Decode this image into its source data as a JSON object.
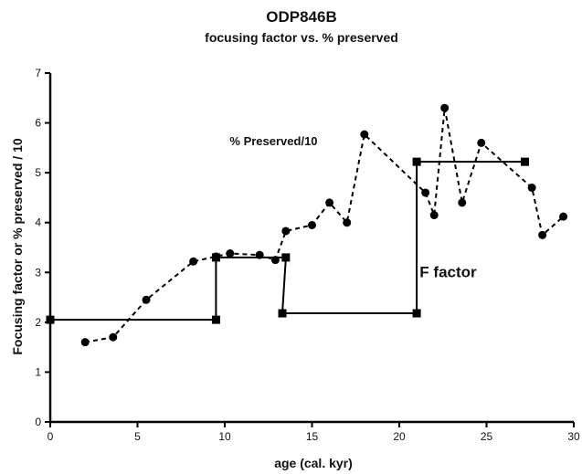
{
  "chart_data": {
    "type": "line",
    "title": "ODP846B",
    "subtitle": "focusing factor vs. % preserved",
    "xlabel": "age (cal. kyr)",
    "ylabel": "Focusing factor or % preserved / 10",
    "xlim": [
      0,
      30
    ],
    "ylim": [
      0,
      7
    ],
    "xticks": [
      0,
      5,
      10,
      15,
      20,
      25,
      30
    ],
    "yticks": [
      0,
      1,
      2,
      3,
      4,
      5,
      6,
      7
    ],
    "grid": false,
    "annotations": [
      {
        "text": "% Preserved/10",
        "x": 12.8,
        "y": 5.55
      },
      {
        "text": "F factor",
        "x": 22.8,
        "y": 2.9
      }
    ],
    "series": [
      {
        "marker": "circle",
        "line_style": "dashed",
        "color": "#000000",
        "points": [
          [
            2.0,
            1.6
          ],
          [
            3.6,
            1.7
          ],
          [
            5.5,
            2.45
          ],
          [
            8.2,
            3.22
          ],
          [
            9.5,
            3.32
          ],
          [
            10.3,
            3.38
          ],
          [
            12.0,
            3.35
          ],
          [
            12.9,
            3.25
          ],
          [
            13.5,
            3.83
          ],
          [
            15.0,
            3.95
          ],
          [
            16.0,
            4.4
          ],
          [
            17.0,
            4.0
          ],
          [
            18.0,
            5.77
          ],
          [
            21.5,
            4.6
          ],
          [
            22.0,
            4.15
          ],
          [
            22.6,
            6.3
          ],
          [
            23.6,
            4.4
          ],
          [
            24.7,
            5.6
          ],
          [
            27.6,
            4.7
          ],
          [
            28.2,
            3.75
          ],
          [
            29.4,
            4.12
          ]
        ]
      },
      {
        "marker": "square",
        "line_style": "solid",
        "color": "#000000",
        "points": [
          [
            0,
            2.05
          ],
          [
            9.5,
            2.05
          ],
          [
            9.5,
            3.3
          ],
          [
            13.5,
            3.3
          ],
          [
            13.3,
            2.18
          ],
          [
            21.0,
            2.18
          ],
          [
            21.0,
            5.22
          ],
          [
            27.2,
            5.22
          ]
        ]
      }
    ]
  }
}
